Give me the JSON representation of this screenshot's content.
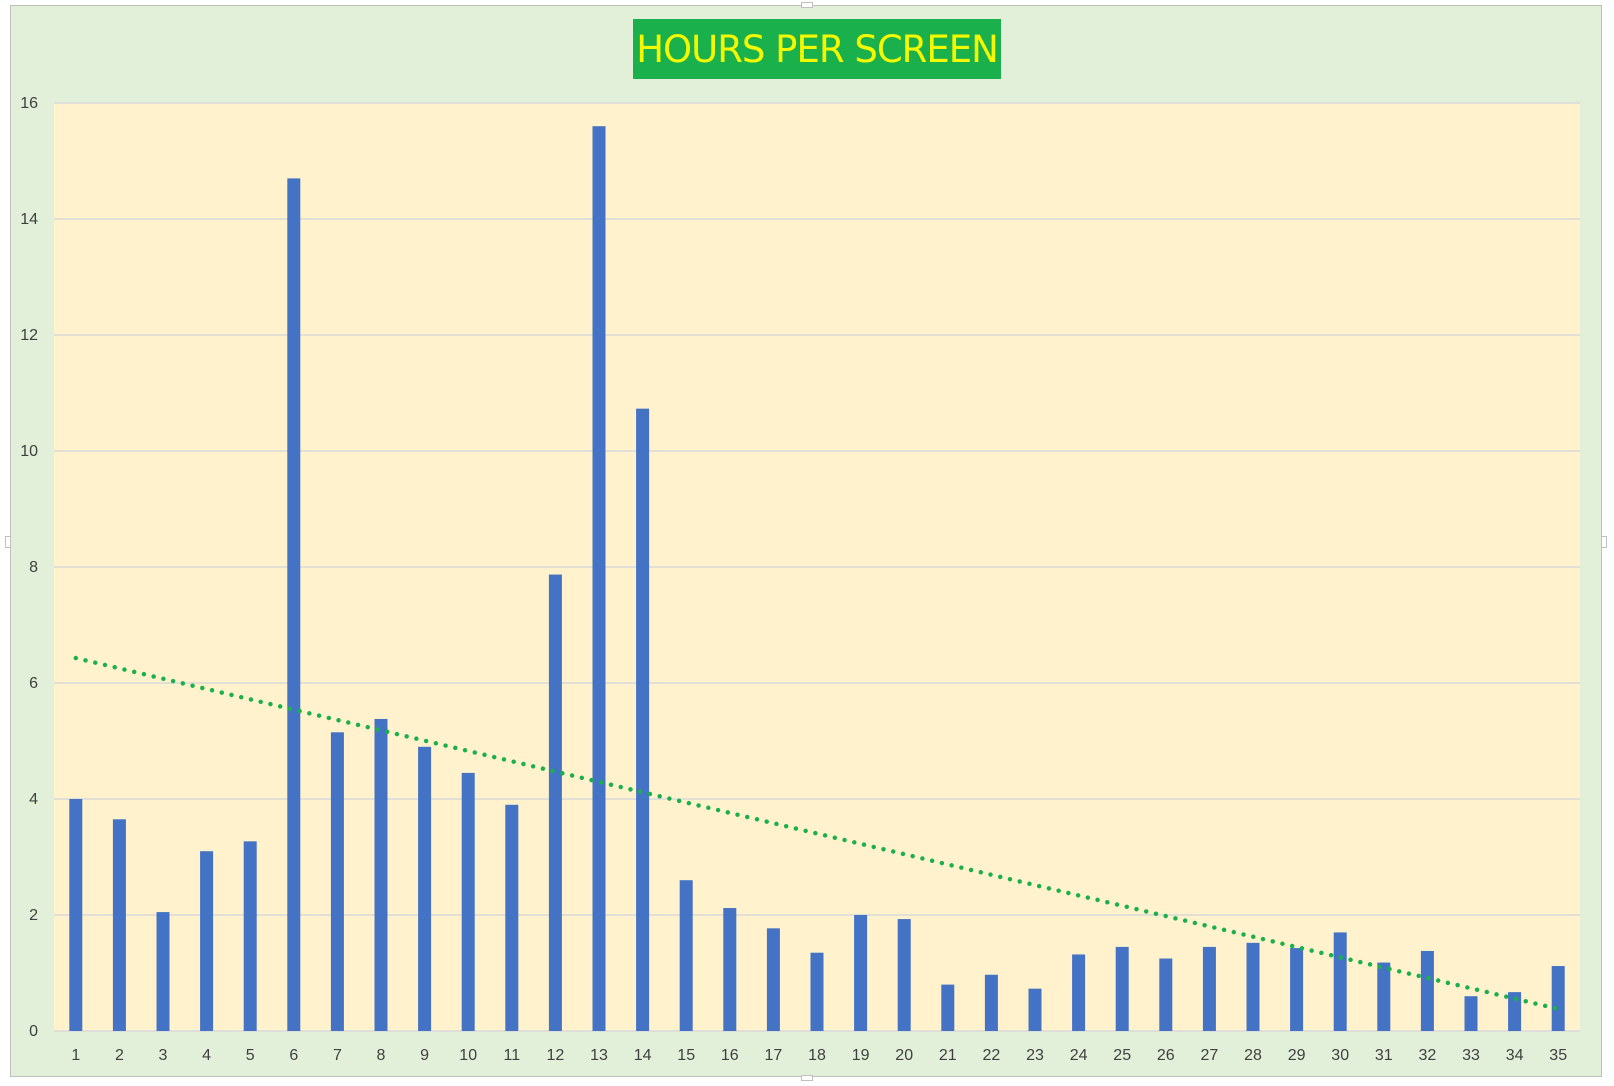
{
  "chart_data": {
    "type": "bar",
    "title": "HOURS PER SCREEN",
    "xlabel": "",
    "ylabel": "",
    "categories": [
      "1",
      "2",
      "3",
      "4",
      "5",
      "6",
      "7",
      "8",
      "9",
      "10",
      "11",
      "12",
      "13",
      "14",
      "15",
      "16",
      "17",
      "18",
      "19",
      "20",
      "21",
      "22",
      "23",
      "24",
      "25",
      "26",
      "27",
      "28",
      "29",
      "30",
      "31",
      "32",
      "33",
      "34",
      "35"
    ],
    "values": [
      4.0,
      3.65,
      2.05,
      3.1,
      3.27,
      14.7,
      5.15,
      5.38,
      4.9,
      4.45,
      3.9,
      7.87,
      15.6,
      10.73,
      2.6,
      2.12,
      1.77,
      1.35,
      2.0,
      1.93,
      0.8,
      0.97,
      0.73,
      1.32,
      1.45,
      1.25,
      1.45,
      1.52,
      1.43,
      1.7,
      1.18,
      1.38,
      0.6,
      0.67,
      1.12
    ],
    "ylim": [
      0,
      16
    ],
    "yticks": [
      "0",
      "2",
      "4",
      "6",
      "8",
      "10",
      "12",
      "14",
      "16"
    ],
    "grid": true,
    "legend": "none",
    "trendline": {
      "type": "linear",
      "style": "dotted",
      "start": 6.43,
      "end": 0.38
    },
    "colors": {
      "bar": "#4472c4",
      "trendline": "#1ab04c",
      "plot_background": "#fff2cc",
      "chart_background": "#e2efd9",
      "title_background": "#1ab04c",
      "title_text": "#f5f900",
      "gridline": "#d9d9d9"
    }
  }
}
